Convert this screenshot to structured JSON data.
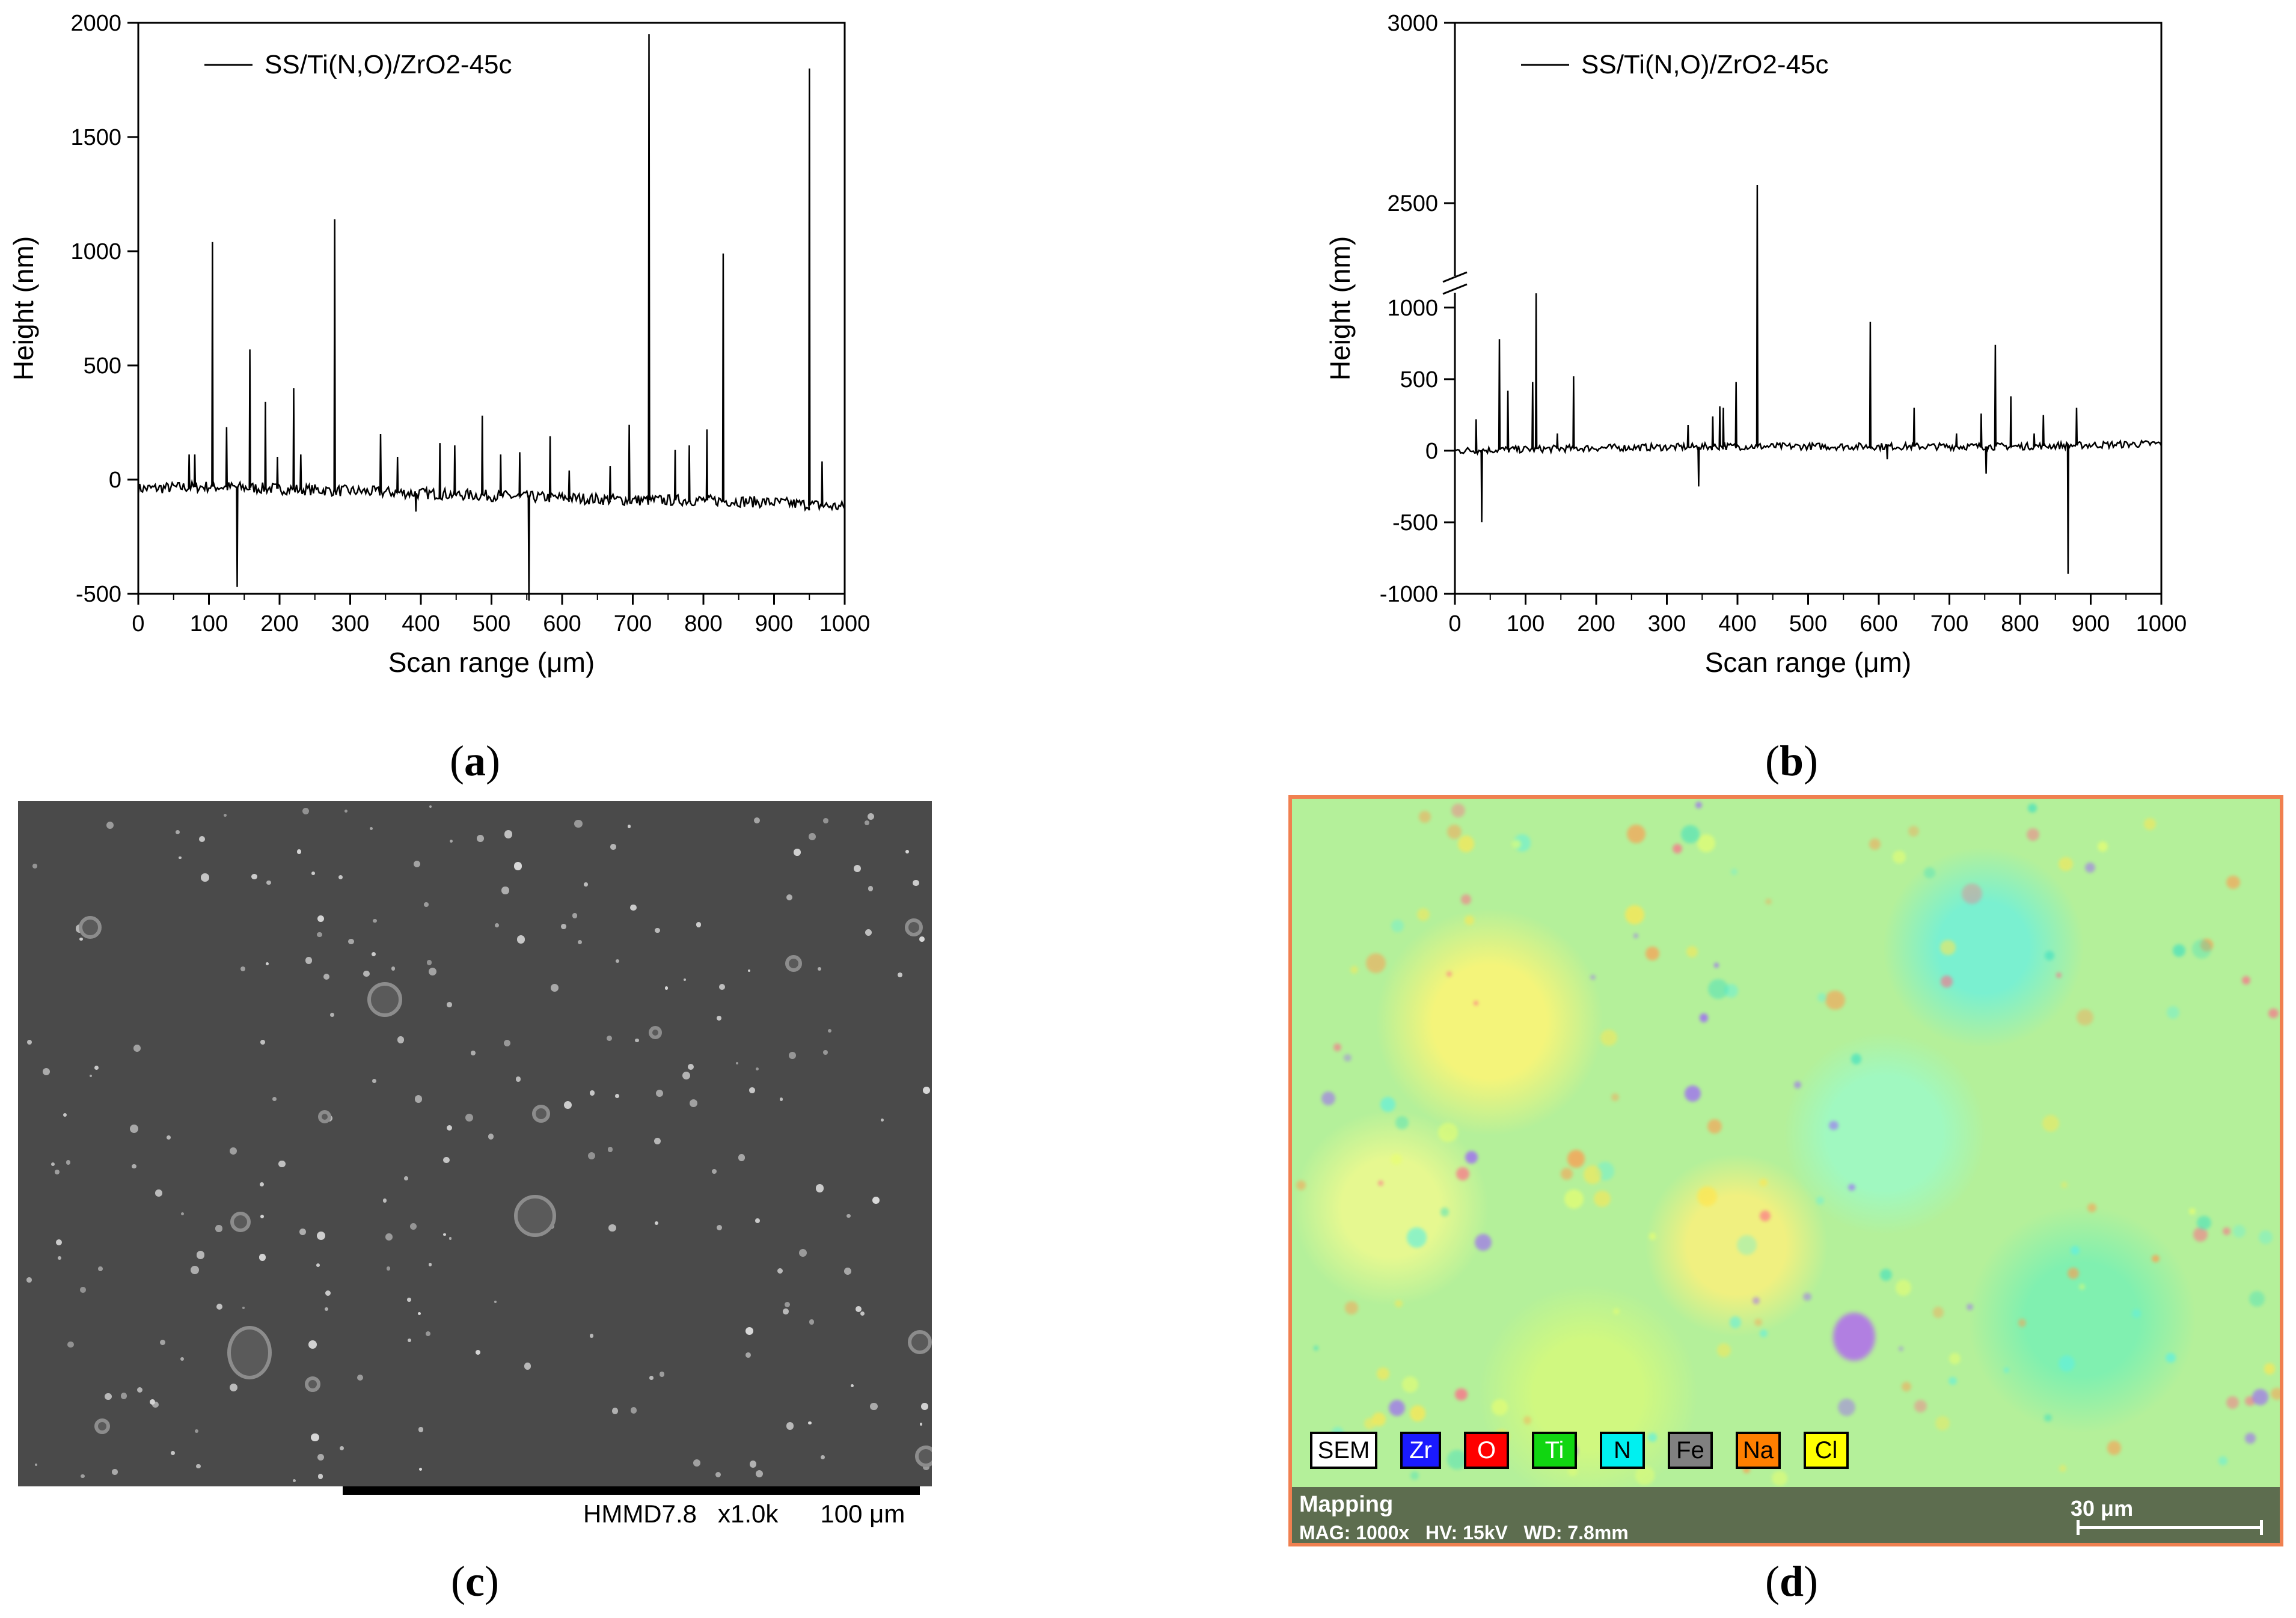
{
  "captions": {
    "a": "a",
    "b": "b",
    "c": "c",
    "d": "d"
  },
  "chart_data": [
    {
      "type": "line",
      "panel": "a",
      "xlabel": "Scan range (μm)",
      "ylabel": "Height (nm)",
      "xlim": [
        0,
        1000
      ],
      "ylim": [
        -500,
        2000
      ],
      "xticks": [
        0,
        100,
        200,
        300,
        400,
        500,
        600,
        700,
        800,
        900,
        1000
      ],
      "yticks": [
        -500,
        0,
        500,
        1000,
        1500,
        2000
      ],
      "legend": "top-left",
      "series": [
        {
          "name": "SS/Ti(N,O)/ZrO2-45c",
          "baseline": [
            [
              0,
              -40
            ],
            [
              100,
              -30
            ],
            [
              200,
              -40
            ],
            [
              300,
              -50
            ],
            [
              400,
              -60
            ],
            [
              500,
              -70
            ],
            [
              600,
              -80
            ],
            [
              700,
              -90
            ],
            [
              800,
              -90
            ],
            [
              900,
              -100
            ],
            [
              1000,
              -120
            ]
          ],
          "peaks": [
            [
              72,
              110
            ],
            [
              80,
              110
            ],
            [
              105,
              1040
            ],
            [
              125,
              230
            ],
            [
              140,
              -470
            ],
            [
              158,
              570
            ],
            [
              180,
              340
            ],
            [
              197,
              100
            ],
            [
              220,
              400
            ],
            [
              230,
              110
            ],
            [
              278,
              1140
            ],
            [
              343,
              200
            ],
            [
              367,
              100
            ],
            [
              393,
              -140
            ],
            [
              427,
              160
            ],
            [
              448,
              150
            ],
            [
              487,
              280
            ],
            [
              513,
              110
            ],
            [
              540,
              120
            ],
            [
              553,
              -530
            ],
            [
              583,
              190
            ],
            [
              610,
              40
            ],
            [
              668,
              60
            ],
            [
              695,
              240
            ],
            [
              723,
              1950
            ],
            [
              760,
              130
            ],
            [
              780,
              150
            ],
            [
              805,
              220
            ],
            [
              828,
              990
            ],
            [
              950,
              1800
            ],
            [
              968,
              80
            ]
          ]
        }
      ]
    },
    {
      "type": "line",
      "panel": "b",
      "xlabel": "Scan range (μm)",
      "ylabel": "Height (nm)",
      "xlim": [
        0,
        1000
      ],
      "ylim": [
        -1000,
        3000
      ],
      "axis_break": [
        1100,
        2300
      ],
      "xticks": [
        0,
        100,
        200,
        300,
        400,
        500,
        600,
        700,
        800,
        900,
        1000
      ],
      "yticks": [
        -1000,
        -500,
        0,
        500,
        1000,
        2500,
        3000
      ],
      "legend": "top-left",
      "series": [
        {
          "name": "SS/Ti(N,O)/ZrO2-45c",
          "baseline": [
            [
              0,
              0
            ],
            [
              200,
              20
            ],
            [
              400,
              30
            ],
            [
              600,
              30
            ],
            [
              800,
              30
            ],
            [
              1000,
              50
            ]
          ],
          "peaks": [
            [
              30,
              220
            ],
            [
              38,
              -500
            ],
            [
              63,
              780
            ],
            [
              75,
              420
            ],
            [
              110,
              480
            ],
            [
              115,
              1100
            ],
            [
              145,
              120
            ],
            [
              168,
              520
            ],
            [
              330,
              180
            ],
            [
              345,
              -250
            ],
            [
              365,
              240
            ],
            [
              375,
              310
            ],
            [
              380,
              300
            ],
            [
              398,
              480
            ],
            [
              428,
              2550
            ],
            [
              588,
              900
            ],
            [
              612,
              -60
            ],
            [
              650,
              300
            ],
            [
              710,
              120
            ],
            [
              745,
              260
            ],
            [
              752,
              -160
            ],
            [
              765,
              740
            ],
            [
              787,
              380
            ],
            [
              820,
              120
            ],
            [
              833,
              250
            ],
            [
              868,
              -860
            ],
            [
              880,
              300
            ]
          ]
        }
      ]
    }
  ],
  "sem": {
    "scale_text": "HMMD7.8   x1.0k      100 μm"
  },
  "eds": {
    "legend": [
      {
        "label": "SEM",
        "color": "#ffffff",
        "text": "#000000"
      },
      {
        "label": "Zr",
        "color": "#1a1aff",
        "text": "#ffffff"
      },
      {
        "label": "O",
        "color": "#ff0000",
        "text": "#ffffff"
      },
      {
        "label": "Ti",
        "color": "#11d611",
        "text": "#ffffff"
      },
      {
        "label": "N",
        "color": "#00f0f0",
        "text": "#000000"
      },
      {
        "label": "Fe",
        "color": "#808080",
        "text": "#000000"
      },
      {
        "label": "Na",
        "color": "#ff7f00",
        "text": "#000000"
      },
      {
        "label": "Cl",
        "color": "#ffff00",
        "text": "#000000"
      }
    ],
    "footer_title": "Mapping",
    "footer_info": "MAG: 1000x   HV: 15kV   WD: 7.8mm",
    "scale_bar": "30 μm"
  }
}
